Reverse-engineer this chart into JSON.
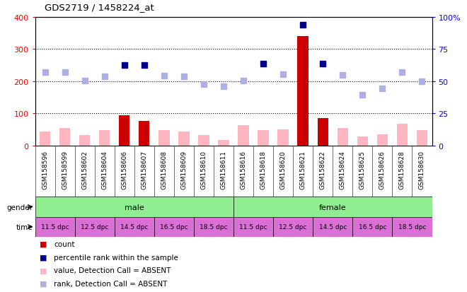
{
  "title": "GDS2719 / 1458224_at",
  "samples": [
    "GSM158596",
    "GSM158599",
    "GSM158602",
    "GSM158604",
    "GSM158606",
    "GSM158607",
    "GSM158608",
    "GSM158609",
    "GSM158610",
    "GSM158611",
    "GSM158616",
    "GSM158618",
    "GSM158620",
    "GSM158621",
    "GSM158622",
    "GSM158624",
    "GSM158625",
    "GSM158626",
    "GSM158628",
    "GSM158630"
  ],
  "count_values": [
    45,
    55,
    32,
    48,
    95,
    76,
    48,
    44,
    32,
    18,
    64,
    48,
    50,
    340,
    85,
    55,
    28,
    35,
    68,
    48
  ],
  "count_absent": [
    true,
    true,
    true,
    true,
    false,
    false,
    true,
    true,
    true,
    true,
    true,
    true,
    true,
    false,
    false,
    true,
    true,
    true,
    true,
    true
  ],
  "rank_values": [
    228,
    228,
    202,
    215,
    250,
    250,
    218,
    215,
    190,
    185,
    202,
    255,
    222,
    375,
    255,
    220,
    158,
    178,
    228,
    200
  ],
  "rank_absent": [
    true,
    true,
    true,
    true,
    false,
    false,
    true,
    true,
    true,
    true,
    true,
    false,
    true,
    false,
    false,
    true,
    true,
    true,
    true,
    true
  ],
  "ylim_left": [
    0,
    400
  ],
  "ylim_right": [
    0,
    100
  ],
  "yticks_left": [
    0,
    100,
    200,
    300,
    400
  ],
  "yticks_right": [
    0,
    25,
    50,
    75,
    100
  ],
  "ytick_labels_right": [
    "0",
    "25",
    "50",
    "75",
    "100%"
  ],
  "color_count_present": "#cc0000",
  "color_count_absent": "#ffb6c1",
  "color_rank_present": "#00008b",
  "color_rank_absent": "#b0b0e0",
  "gender_blocks": [
    {
      "label": "male",
      "start": 0,
      "end": 10,
      "color": "#90EE90"
    },
    {
      "label": "female",
      "start": 10,
      "end": 20,
      "color": "#90EE90"
    }
  ],
  "time_slots": [
    {
      "label": "11.5 dpc",
      "start": 0,
      "end": 2,
      "color": "#DA70D6"
    },
    {
      "label": "12.5 dpc",
      "start": 2,
      "end": 4,
      "color": "#DA70D6"
    },
    {
      "label": "14.5 dpc",
      "start": 4,
      "end": 6,
      "color": "#DA70D6"
    },
    {
      "label": "16.5 dpc",
      "start": 6,
      "end": 8,
      "color": "#DA70D6"
    },
    {
      "label": "18.5 dpc",
      "start": 8,
      "end": 10,
      "color": "#DA70D6"
    },
    {
      "label": "11.5 dpc",
      "start": 10,
      "end": 12,
      "color": "#DA70D6"
    },
    {
      "label": "12.5 dpc",
      "start": 12,
      "end": 14,
      "color": "#DA70D6"
    },
    {
      "label": "14.5 dpc",
      "start": 14,
      "end": 16,
      "color": "#DA70D6"
    },
    {
      "label": "16.5 dpc",
      "start": 16,
      "end": 18,
      "color": "#DA70D6"
    },
    {
      "label": "18.5 dpc",
      "start": 18,
      "end": 20,
      "color": "#DA70D6"
    }
  ],
  "background_color": "#ffffff",
  "xticklabel_bg": "#d3d3d3"
}
